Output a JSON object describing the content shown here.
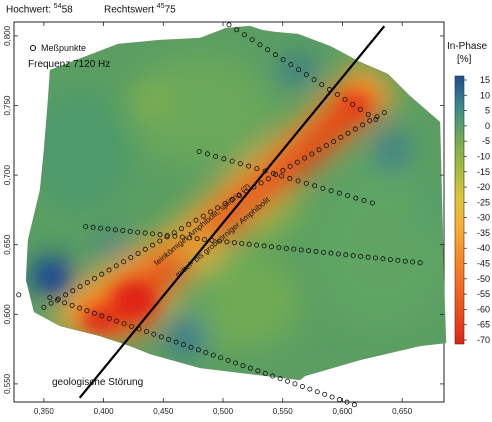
{
  "header": {
    "hochwert_label": "Hochwert:",
    "hochwert_sup": "54",
    "hochwert_val": "58",
    "rechtswert_label": "Rechtswert",
    "rechtswert_sup": "45",
    "rechtswert_val": "75"
  },
  "legend": {
    "marker_label": "Meßpunkte",
    "frequency": "Frequenz 7120 Hz"
  },
  "annotations": {
    "fault": "geologische Störung",
    "fine_amphibolite": "feinkörniger Amphibolit, splittrig (?)",
    "coarse_amphibolite": "mittel- bis grobkörniger Amphibolit"
  },
  "colorbar": {
    "title": "In-Phase",
    "unit": "[%]",
    "ticks": [
      "15",
      "10",
      "5",
      "0",
      "-5",
      "-10",
      "-15",
      "-20",
      "-25",
      "-30",
      "-35",
      "-40",
      "-45",
      "-50",
      "-55",
      "-60",
      "-65",
      "-70"
    ],
    "colors": [
      "#1d4e8f",
      "#2d6d9c",
      "#3a8c8c",
      "#4f9e70",
      "#6aa85a",
      "#86b148",
      "#a3ba3c",
      "#c0c23a",
      "#dcc53a",
      "#f0c23a",
      "#f8b032",
      "#f99a2a",
      "#f98324",
      "#f56e1f",
      "#f05a1c",
      "#ea4519",
      "#e53417",
      "#e02416"
    ]
  },
  "chart_data": {
    "type": "heatmap",
    "xlabel": "",
    "ylabel": "",
    "x_ticks": [
      "0,350",
      "0,400",
      "0,450",
      "0,500",
      "0,550",
      "0,600",
      "0,650"
    ],
    "y_ticks": [
      "0,800",
      "0,750",
      "0,700",
      "0,650",
      "0,600",
      "0,550"
    ],
    "x_range": [
      0.325,
      0.685
    ],
    "y_range": [
      0.537,
      0.81
    ],
    "value_range": [
      -72,
      17
    ],
    "value_unit": "%",
    "fault_line": [
      [
        0.38,
        0.54
      ],
      [
        0.635,
        0.807
      ]
    ],
    "measurement_profiles": [
      {
        "from": [
          0.35,
          0.605
        ],
        "to": [
          0.635,
          0.745
        ],
        "count": 48
      },
      {
        "from": [
          0.355,
          0.612
        ],
        "to": [
          0.61,
          0.535
        ],
        "count": 42
      },
      {
        "from": [
          0.385,
          0.663
        ],
        "to": [
          0.665,
          0.637
        ],
        "count": 46
      },
      {
        "from": [
          0.48,
          0.717
        ],
        "to": [
          0.625,
          0.68
        ],
        "count": 22
      },
      {
        "from": [
          0.505,
          0.808
        ],
        "to": [
          0.628,
          0.74
        ],
        "count": 20
      }
    ],
    "single_points": [
      [
        0.329,
        0.614
      ]
    ]
  }
}
